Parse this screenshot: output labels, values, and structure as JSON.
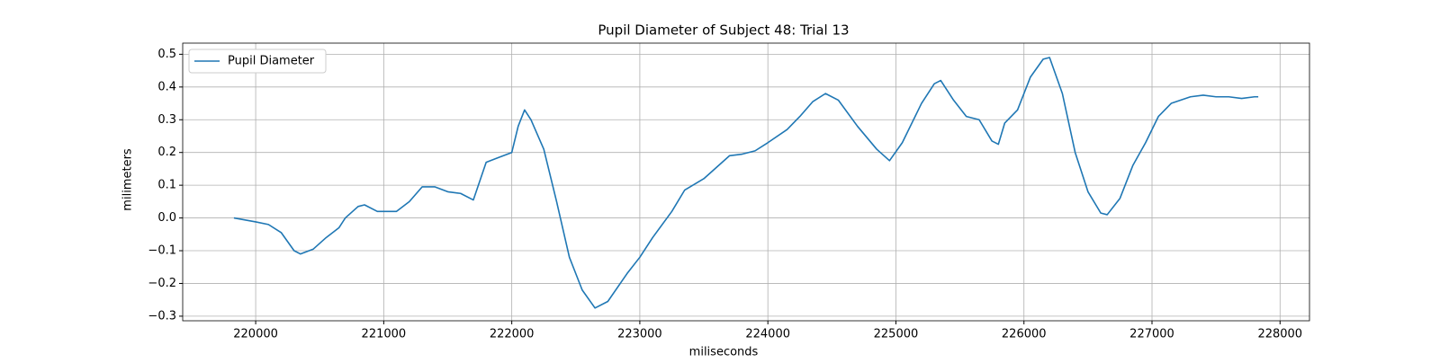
{
  "chart_data": {
    "type": "line",
    "title": "Pupil Diameter of Subject 48: Trial 13",
    "x_label": "miliseconds",
    "y_label": "milimeters",
    "x": [
      219830,
      220000,
      220100,
      220200,
      220300,
      220350,
      220450,
      220550,
      220650,
      220700,
      220800,
      220850,
      220950,
      221000,
      221100,
      221200,
      221300,
      221400,
      221500,
      221600,
      221700,
      221800,
      221900,
      222000,
      222050,
      222100,
      222150,
      222250,
      222350,
      222450,
      222550,
      222650,
      222750,
      222900,
      223000,
      223100,
      223250,
      223350,
      223500,
      223600,
      223700,
      223800,
      223900,
      224000,
      224150,
      224250,
      224350,
      224450,
      224550,
      224700,
      224850,
      224950,
      225050,
      225200,
      225300,
      225350,
      225450,
      225550,
      225650,
      225750,
      225800,
      225850,
      225950,
      226050,
      226150,
      226200,
      226300,
      226400,
      226500,
      226600,
      226650,
      226750,
      226850,
      226950,
      227050,
      227150,
      227300,
      227400,
      227500,
      227600,
      227700,
      227800,
      227830
    ],
    "series": [
      {
        "name": "Pupil Diameter",
        "color": "#1f77b4",
        "values": [
          0.0,
          -0.012,
          -0.02,
          -0.045,
          -0.1,
          -0.11,
          -0.095,
          -0.06,
          -0.03,
          0.0,
          0.035,
          0.04,
          0.02,
          0.02,
          0.02,
          0.05,
          0.095,
          0.095,
          0.08,
          0.075,
          0.055,
          0.17,
          0.185,
          0.2,
          0.28,
          0.33,
          0.3,
          0.21,
          0.05,
          -0.12,
          -0.22,
          -0.275,
          -0.255,
          -0.17,
          -0.12,
          -0.06,
          0.02,
          0.085,
          0.12,
          0.155,
          0.19,
          0.195,
          0.205,
          0.23,
          0.27,
          0.31,
          0.355,
          0.38,
          0.36,
          0.28,
          0.21,
          0.175,
          0.23,
          0.35,
          0.41,
          0.42,
          0.36,
          0.31,
          0.3,
          0.235,
          0.225,
          0.29,
          0.33,
          0.43,
          0.485,
          0.49,
          0.38,
          0.2,
          0.08,
          0.015,
          0.01,
          0.06,
          0.16,
          0.23,
          0.31,
          0.35,
          0.37,
          0.375,
          0.37,
          0.37,
          0.365,
          0.37,
          0.37
        ]
      }
    ],
    "xlim": [
      219430,
      228230
    ],
    "ylim": [
      -0.314,
      0.534
    ],
    "xticks": [
      220000,
      221000,
      222000,
      223000,
      224000,
      225000,
      226000,
      227000,
      228000
    ],
    "yticks": [
      {
        "value": -0.3,
        "label": "−0.3"
      },
      {
        "value": -0.2,
        "label": "−0.2"
      },
      {
        "value": -0.1,
        "label": "−0.1"
      },
      {
        "value": 0.0,
        "label": "0.0"
      },
      0.1,
      0.2,
      0.3,
      0.4,
      0.5
    ],
    "grid": true,
    "legend": "upper left"
  }
}
